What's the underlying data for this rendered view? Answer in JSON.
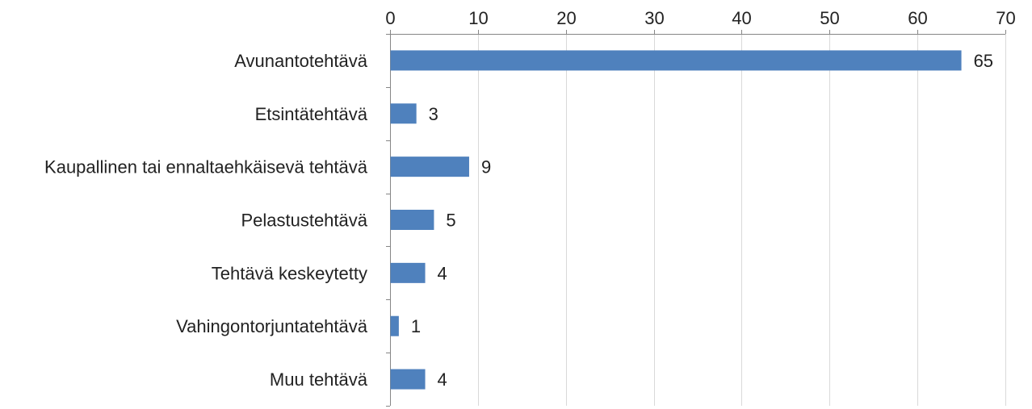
{
  "chart_data": {
    "type": "bar",
    "orientation": "horizontal",
    "categories": [
      "Avunantotehtävä",
      "Etsintätehtävä",
      "Kaupallinen tai ennaltaehkäisevä tehtävä",
      "Pelastustehtävä",
      "Tehtävä keskeytetty",
      "Vahingontorjuntatehtävä",
      "Muu tehtävä"
    ],
    "values": [
      65,
      3,
      9,
      5,
      4,
      1,
      4
    ],
    "xlim": [
      0,
      70
    ],
    "x_ticks": [
      0,
      10,
      20,
      30,
      40,
      50,
      60,
      70
    ],
    "x_axis_position": "top",
    "grid": true,
    "data_labels": true,
    "bar_color": "#4f81bd",
    "title": "",
    "xlabel": "",
    "ylabel": ""
  }
}
